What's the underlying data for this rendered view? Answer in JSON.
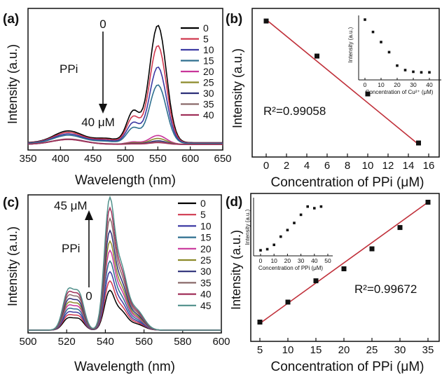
{
  "chart_data": [
    {
      "panel": "(a)",
      "type": "line",
      "xlabel": "Wavelength (nm)",
      "ylabel": "Intensity (a.u.)",
      "xlim": [
        350,
        650
      ],
      "xticks": [
        "350",
        "400",
        "450",
        "500",
        "550",
        "600",
        "650"
      ],
      "legend": [
        "0",
        "5",
        "10",
        "15",
        "20",
        "25",
        "30",
        "35",
        "40"
      ],
      "legend_position": "top-right",
      "series_colors": [
        "#000000",
        "#d0394f",
        "#3d3aa3",
        "#2e6f8f",
        "#c8359a",
        "#8c8a2a",
        "#2c2f78",
        "#8a6a6a",
        "#a0305a"
      ],
      "peak_values": [
        1.0,
        0.83,
        0.65,
        0.5,
        0.075,
        0.05,
        0.03,
        0.02,
        0.015
      ],
      "annotations": {
        "start": "0",
        "end": "40 μM",
        "reagent": "PPi"
      }
    },
    {
      "panel": "(b)",
      "type": "scatter",
      "xlabel": "Concentration of PPi (μM)",
      "ylabel": "Intensity (a.u.)",
      "xlim": [
        0,
        16
      ],
      "xticks": [
        "0",
        "2",
        "4",
        "6",
        "8",
        "10",
        "12",
        "14",
        "16"
      ],
      "x": [
        0,
        5,
        10,
        15
      ],
      "y": [
        0.93,
        0.68,
        0.41,
        0.06
      ],
      "fit": {
        "x": [
          0,
          15
        ],
        "y": [
          0.94,
          0.05
        ]
      },
      "r2_label": "R²=0.99058",
      "inset": {
        "type": "scatter",
        "xlabel": "Concentration of Cu²⁺ (μM)",
        "ylabel": "Intensity (a.u.)",
        "xticks": [
          "0",
          "10",
          "20",
          "30",
          "40"
        ],
        "x": [
          0,
          5,
          10,
          15,
          20,
          25,
          30,
          35,
          40
        ],
        "y": [
          1.0,
          0.78,
          0.6,
          0.42,
          0.18,
          0.1,
          0.07,
          0.06,
          0.06
        ]
      }
    },
    {
      "panel": "(c)",
      "type": "line",
      "xlabel": "Wavelength (nm)",
      "ylabel": "Intensity (a.u.)",
      "xlim": [
        500,
        600
      ],
      "xticks": [
        "500",
        "520",
        "540",
        "560",
        "580",
        "600"
      ],
      "legend": [
        "0",
        "5",
        "10",
        "15",
        "20",
        "25",
        "30",
        "35",
        "40",
        "45"
      ],
      "legend_position": "top-right",
      "series_colors": [
        "#000000",
        "#d0394f",
        "#3d3aa3",
        "#2e6f8f",
        "#c8359a",
        "#8c8a2a",
        "#2c2f78",
        "#8a6a6a",
        "#a0305a",
        "#4f8f8a"
      ],
      "peak_values": [
        0.3,
        0.37,
        0.44,
        0.52,
        0.6,
        0.67,
        0.75,
        0.84,
        0.92,
        1.0
      ],
      "annotations": {
        "start": "0",
        "end": "45 μM",
        "reagent": "PPi"
      }
    },
    {
      "panel": "(d)",
      "type": "scatter",
      "xlabel": "Concentration of PPi (μM)",
      "ylabel": "Intensity (a.u.)",
      "xlim": [
        3.5,
        36
      ],
      "xticks": [
        "5",
        "10",
        "15",
        "20",
        "25",
        "30",
        "35"
      ],
      "x": [
        5,
        10,
        15,
        20,
        25,
        30,
        35
      ],
      "y": [
        0.05,
        0.2,
        0.36,
        0.45,
        0.6,
        0.76,
        0.95
      ],
      "fit": {
        "x": [
          5,
          35
        ],
        "y": [
          0.04,
          0.95
        ]
      },
      "r2_label": "R²=0.99672",
      "inset": {
        "type": "scatter",
        "xlabel": "Concentration of PPi (μM)",
        "ylabel": "Intensity (a.u.)",
        "xticks": [
          "0",
          "10",
          "20",
          "30",
          "40",
          "50"
        ],
        "x": [
          0,
          5,
          10,
          15,
          20,
          25,
          30,
          35,
          40,
          45
        ],
        "y": [
          0.05,
          0.07,
          0.15,
          0.3,
          0.42,
          0.55,
          0.7,
          0.85,
          0.82,
          0.85
        ]
      }
    }
  ]
}
